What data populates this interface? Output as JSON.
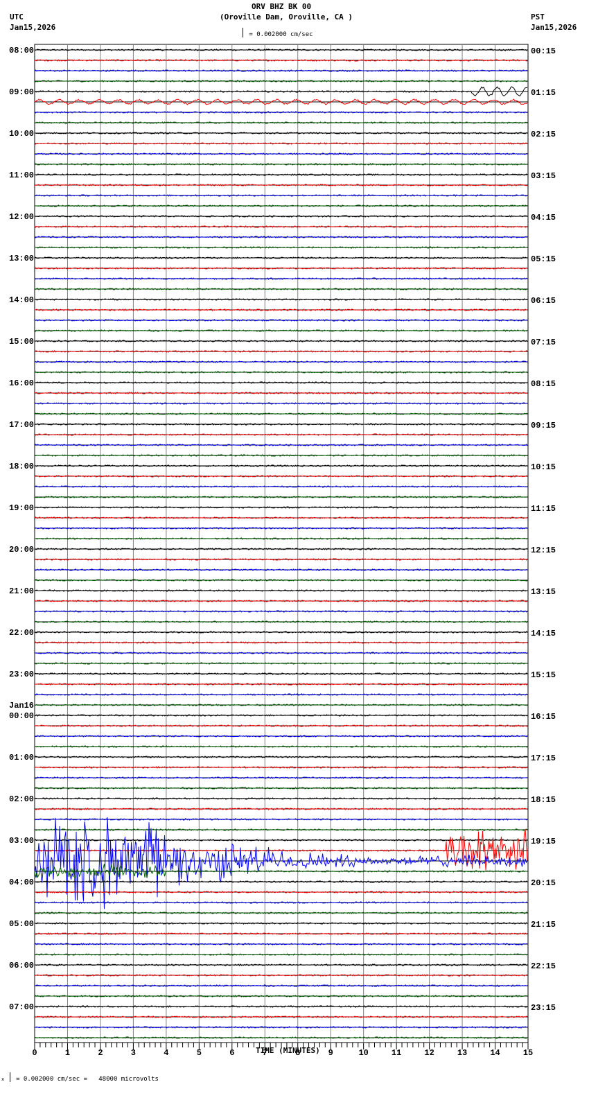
{
  "header": {
    "station": "ORV BHZ BK 00",
    "location": "(Oroville Dam, Oroville, CA )",
    "scale_text": "= 0.002000 cm/sec",
    "left_tz": "UTC",
    "left_date": "Jan15,2026",
    "right_tz": "PST",
    "right_date": "Jan15,2026"
  },
  "footer": {
    "scale_text": "= 0.002000 cm/sec =   48000 microvolts",
    "mark": "x"
  },
  "colors": {
    "trace_cycle": [
      "#000000",
      "#ff0000",
      "#0000ff",
      "#006400"
    ],
    "grid": "#808080",
    "baseline": "#000000"
  },
  "chart_data": {
    "type": "line",
    "title": "ORV BHZ BK 00 (Oroville Dam, Oroville, CA )",
    "xlabel": "TIME (MINUTES)",
    "ylabel": "",
    "xlim": [
      0,
      15
    ],
    "x_ticks": [
      0,
      1,
      2,
      3,
      4,
      5,
      6,
      7,
      8,
      9,
      10,
      11,
      12,
      13,
      14,
      15
    ],
    "minor_tick_interval_min": 0.1667,
    "traces_per_hour": 4,
    "trace_minutes": 15,
    "grid": true,
    "left_labels": [
      {
        "row": 0,
        "text": "08:00"
      },
      {
        "row": 4,
        "text": "09:00"
      },
      {
        "row": 8,
        "text": "10:00"
      },
      {
        "row": 12,
        "text": "11:00"
      },
      {
        "row": 16,
        "text": "12:00"
      },
      {
        "row": 20,
        "text": "13:00"
      },
      {
        "row": 24,
        "text": "14:00"
      },
      {
        "row": 28,
        "text": "15:00"
      },
      {
        "row": 32,
        "text": "16:00"
      },
      {
        "row": 36,
        "text": "17:00"
      },
      {
        "row": 40,
        "text": "18:00"
      },
      {
        "row": 44,
        "text": "19:00"
      },
      {
        "row": 48,
        "text": "20:00"
      },
      {
        "row": 52,
        "text": "21:00"
      },
      {
        "row": 56,
        "text": "22:00"
      },
      {
        "row": 60,
        "text": "23:00"
      },
      {
        "row": 64,
        "text": "00:00",
        "date": "Jan16"
      },
      {
        "row": 68,
        "text": "01:00"
      },
      {
        "row": 72,
        "text": "02:00"
      },
      {
        "row": 76,
        "text": "03:00"
      },
      {
        "row": 80,
        "text": "04:00"
      },
      {
        "row": 84,
        "text": "05:00"
      },
      {
        "row": 88,
        "text": "06:00"
      },
      {
        "row": 92,
        "text": "07:00"
      }
    ],
    "right_labels": [
      {
        "row": 0,
        "text": "00:15"
      },
      {
        "row": 4,
        "text": "01:15"
      },
      {
        "row": 8,
        "text": "02:15"
      },
      {
        "row": 12,
        "text": "03:15"
      },
      {
        "row": 16,
        "text": "04:15"
      },
      {
        "row": 20,
        "text": "05:15"
      },
      {
        "row": 24,
        "text": "06:15"
      },
      {
        "row": 28,
        "text": "07:15"
      },
      {
        "row": 32,
        "text": "08:15"
      },
      {
        "row": 36,
        "text": "09:15"
      },
      {
        "row": 40,
        "text": "10:15"
      },
      {
        "row": 44,
        "text": "11:15"
      },
      {
        "row": 48,
        "text": "12:15"
      },
      {
        "row": 52,
        "text": "13:15"
      },
      {
        "row": 56,
        "text": "14:15"
      },
      {
        "row": 60,
        "text": "15:15"
      },
      {
        "row": 64,
        "text": "16:15"
      },
      {
        "row": 68,
        "text": "17:15"
      },
      {
        "row": 72,
        "text": "18:15"
      },
      {
        "row": 76,
        "text": "19:15"
      },
      {
        "row": 80,
        "text": "20:15"
      },
      {
        "row": 84,
        "text": "21:15"
      },
      {
        "row": 88,
        "text": "22:15"
      },
      {
        "row": 92,
        "text": "23:15"
      }
    ],
    "row_count": 96,
    "events": [
      {
        "row": 4,
        "start_min": 13.3,
        "end_min": 15,
        "amplitude": 6,
        "period_min": 0.45,
        "description": "long-period waves 09:00 black"
      },
      {
        "row": 5,
        "start_min": 0,
        "end_min": 15,
        "amplitude": 3,
        "period_min": 0.6,
        "description": "low-freq noise 09:15 red"
      },
      {
        "row": 78,
        "start_min": 0,
        "end_min": 15,
        "amplitude": 70,
        "decay": true,
        "description": "large teleseismic earthquake, blue trace 03:30"
      },
      {
        "row": 79,
        "start_min": 0,
        "end_min": 4,
        "amplitude": 10,
        "description": "green coda 03:45"
      },
      {
        "row": 77,
        "start_min": 12.5,
        "end_min": 15,
        "amplitude": 55,
        "description": "red trace burst 03:15"
      }
    ]
  }
}
